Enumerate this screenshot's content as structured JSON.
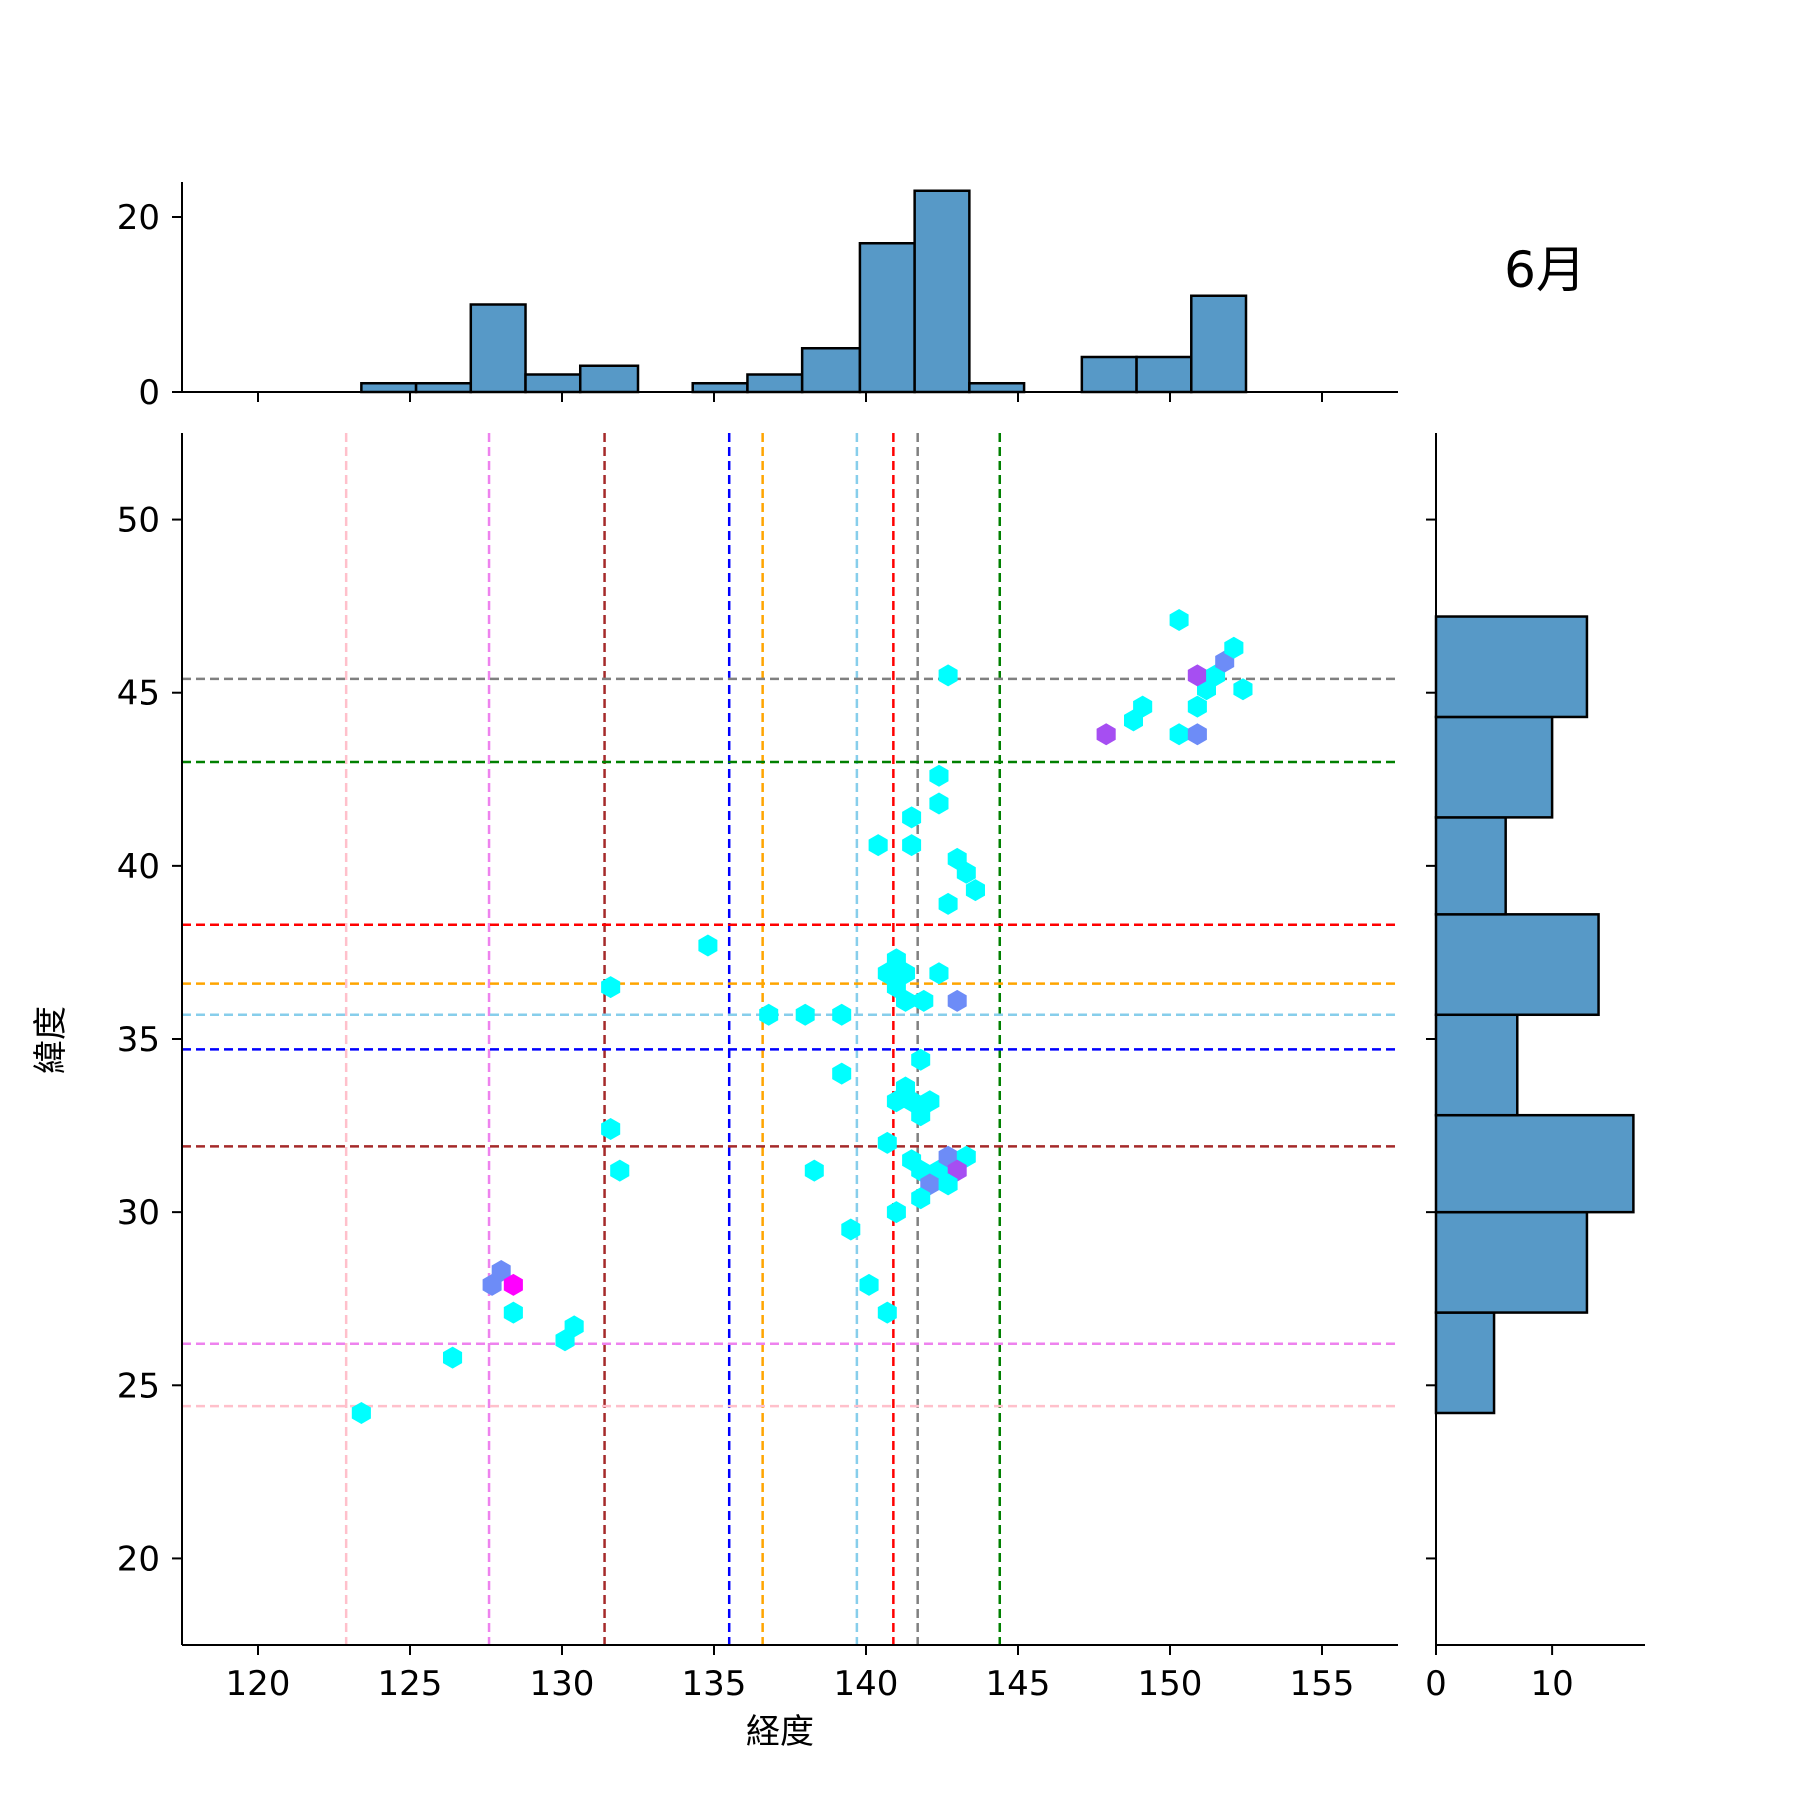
{
  "chart_data": {
    "type": "scatter",
    "title": "6月",
    "xlabel": "経度",
    "ylabel": "緯度",
    "xlim": [
      117.5,
      157.5
    ],
    "ylim": [
      17.5,
      52.5
    ],
    "xticks": [
      120,
      125,
      130,
      135,
      140,
      145,
      150,
      155
    ],
    "yticks": [
      20,
      25,
      30,
      35,
      40,
      45,
      50
    ],
    "hex_points": [
      {
        "x": 123.4,
        "y": 24.2,
        "color": "#00ffff"
      },
      {
        "x": 126.4,
        "y": 25.8,
        "color": "#00ffff"
      },
      {
        "x": 127.7,
        "y": 27.9,
        "color": "#6d8cf7"
      },
      {
        "x": 128.0,
        "y": 28.3,
        "color": "#6d8cf7"
      },
      {
        "x": 128.4,
        "y": 27.9,
        "color": "#ff00ff"
      },
      {
        "x": 128.4,
        "y": 27.1,
        "color": "#00ffff"
      },
      {
        "x": 130.1,
        "y": 26.3,
        "color": "#00ffff"
      },
      {
        "x": 130.4,
        "y": 26.7,
        "color": "#00ffff"
      },
      {
        "x": 131.6,
        "y": 32.4,
        "color": "#00ffff"
      },
      {
        "x": 131.9,
        "y": 31.2,
        "color": "#00ffff"
      },
      {
        "x": 131.6,
        "y": 36.5,
        "color": "#00ffff"
      },
      {
        "x": 134.8,
        "y": 37.7,
        "color": "#00ffff"
      },
      {
        "x": 136.8,
        "y": 35.7,
        "color": "#00ffff"
      },
      {
        "x": 138.0,
        "y": 35.7,
        "color": "#00ffff"
      },
      {
        "x": 139.2,
        "y": 35.7,
        "color": "#00ffff"
      },
      {
        "x": 139.2,
        "y": 34.0,
        "color": "#00ffff"
      },
      {
        "x": 138.3,
        "y": 31.2,
        "color": "#00ffff"
      },
      {
        "x": 139.5,
        "y": 29.5,
        "color": "#00ffff"
      },
      {
        "x": 140.1,
        "y": 27.9,
        "color": "#00ffff"
      },
      {
        "x": 140.7,
        "y": 27.1,
        "color": "#00ffff"
      },
      {
        "x": 140.4,
        "y": 40.6,
        "color": "#00ffff"
      },
      {
        "x": 141.5,
        "y": 40.6,
        "color": "#00ffff"
      },
      {
        "x": 141.5,
        "y": 41.4,
        "color": "#00ffff"
      },
      {
        "x": 142.4,
        "y": 41.8,
        "color": "#00ffff"
      },
      {
        "x": 142.4,
        "y": 42.6,
        "color": "#00ffff"
      },
      {
        "x": 143.0,
        "y": 40.2,
        "color": "#00ffff"
      },
      {
        "x": 143.3,
        "y": 39.8,
        "color": "#00ffff"
      },
      {
        "x": 143.6,
        "y": 39.3,
        "color": "#00ffff"
      },
      {
        "x": 142.7,
        "y": 38.9,
        "color": "#00ffff"
      },
      {
        "x": 142.7,
        "y": 45.5,
        "color": "#00ffff"
      },
      {
        "x": 140.7,
        "y": 36.9,
        "color": "#00ffff"
      },
      {
        "x": 141.0,
        "y": 37.3,
        "color": "#00ffff"
      },
      {
        "x": 141.3,
        "y": 36.9,
        "color": "#00ffff"
      },
      {
        "x": 141.0,
        "y": 36.5,
        "color": "#00ffff"
      },
      {
        "x": 141.3,
        "y": 36.1,
        "color": "#00ffff"
      },
      {
        "x": 141.9,
        "y": 36.1,
        "color": "#00ffff"
      },
      {
        "x": 142.4,
        "y": 36.9,
        "color": "#00ffff"
      },
      {
        "x": 143.0,
        "y": 36.1,
        "color": "#6d8cf7"
      },
      {
        "x": 141.8,
        "y": 34.4,
        "color": "#00ffff"
      },
      {
        "x": 141.3,
        "y": 33.6,
        "color": "#00ffff"
      },
      {
        "x": 141.0,
        "y": 33.2,
        "color": "#00ffff"
      },
      {
        "x": 141.5,
        "y": 33.2,
        "color": "#00ffff"
      },
      {
        "x": 142.1,
        "y": 33.2,
        "color": "#00ffff"
      },
      {
        "x": 141.8,
        "y": 32.8,
        "color": "#00ffff"
      },
      {
        "x": 140.7,
        "y": 32.0,
        "color": "#00ffff"
      },
      {
        "x": 141.5,
        "y": 31.5,
        "color": "#00ffff"
      },
      {
        "x": 141.8,
        "y": 31.2,
        "color": "#00ffff"
      },
      {
        "x": 142.4,
        "y": 31.2,
        "color": "#00ffff"
      },
      {
        "x": 142.7,
        "y": 31.6,
        "color": "#6d8cf7"
      },
      {
        "x": 143.3,
        "y": 31.6,
        "color": "#00ffff"
      },
      {
        "x": 143.0,
        "y": 31.2,
        "color": "#a64ef2"
      },
      {
        "x": 142.1,
        "y": 30.8,
        "color": "#6d8cf7"
      },
      {
        "x": 142.7,
        "y": 30.8,
        "color": "#00ffff"
      },
      {
        "x": 141.8,
        "y": 30.4,
        "color": "#00ffff"
      },
      {
        "x": 141.0,
        "y": 30.0,
        "color": "#00ffff"
      },
      {
        "x": 147.9,
        "y": 43.8,
        "color": "#a64ef2"
      },
      {
        "x": 148.8,
        "y": 44.2,
        "color": "#00ffff"
      },
      {
        "x": 149.1,
        "y": 44.6,
        "color": "#00ffff"
      },
      {
        "x": 150.3,
        "y": 43.8,
        "color": "#00ffff"
      },
      {
        "x": 150.9,
        "y": 43.8,
        "color": "#6d8cf7"
      },
      {
        "x": 150.3,
        "y": 47.1,
        "color": "#00ffff"
      },
      {
        "x": 150.9,
        "y": 44.6,
        "color": "#00ffff"
      },
      {
        "x": 151.2,
        "y": 45.1,
        "color": "#00ffff"
      },
      {
        "x": 150.9,
        "y": 45.5,
        "color": "#a64ef2"
      },
      {
        "x": 151.5,
        "y": 45.5,
        "color": "#00ffff"
      },
      {
        "x": 151.8,
        "y": 45.9,
        "color": "#6d8cf7"
      },
      {
        "x": 152.1,
        "y": 46.3,
        "color": "#00ffff"
      },
      {
        "x": 152.4,
        "y": 45.1,
        "color": "#00ffff"
      }
    ],
    "vlines": [
      {
        "x": 122.9,
        "color": "#ffc0cb"
      },
      {
        "x": 127.6,
        "color": "#ee82ee"
      },
      {
        "x": 131.4,
        "color": "#a52a2a"
      },
      {
        "x": 135.5,
        "color": "#0000ff"
      },
      {
        "x": 136.6,
        "color": "#ffa500"
      },
      {
        "x": 139.7,
        "color": "#87ceeb"
      },
      {
        "x": 140.9,
        "color": "#ff0000"
      },
      {
        "x": 141.7,
        "color": "#808080"
      },
      {
        "x": 144.4,
        "color": "#008000"
      }
    ],
    "hlines": [
      {
        "y": 45.4,
        "color": "#808080"
      },
      {
        "y": 43.0,
        "color": "#008000"
      },
      {
        "y": 38.3,
        "color": "#ff0000"
      },
      {
        "y": 36.6,
        "color": "#ffa500"
      },
      {
        "y": 35.7,
        "color": "#87ceeb"
      },
      {
        "y": 34.7,
        "color": "#0000ff"
      },
      {
        "y": 31.9,
        "color": "#a52a2a"
      },
      {
        "y": 26.2,
        "color": "#ee82ee"
      },
      {
        "y": 24.4,
        "color": "#ffc0cb"
      }
    ],
    "top_histogram": {
      "ylim": [
        0,
        24
      ],
      "yticks": [
        0,
        20
      ],
      "bins": [
        {
          "x0": 123.4,
          "x1": 125.2,
          "count": 1
        },
        {
          "x0": 125.2,
          "x1": 127.0,
          "count": 1
        },
        {
          "x0": 127.0,
          "x1": 128.8,
          "count": 10
        },
        {
          "x0": 128.8,
          "x1": 130.6,
          "count": 2
        },
        {
          "x0": 130.6,
          "x1": 132.5,
          "count": 3
        },
        {
          "x0": 134.3,
          "x1": 136.1,
          "count": 1
        },
        {
          "x0": 136.1,
          "x1": 137.9,
          "count": 2
        },
        {
          "x0": 137.9,
          "x1": 139.8,
          "count": 5
        },
        {
          "x0": 139.8,
          "x1": 141.6,
          "count": 17
        },
        {
          "x0": 141.6,
          "x1": 143.4,
          "count": 23
        },
        {
          "x0": 143.4,
          "x1": 145.2,
          "count": 1
        },
        {
          "x0": 147.1,
          "x1": 148.9,
          "count": 4
        },
        {
          "x0": 148.9,
          "x1": 150.7,
          "count": 4
        },
        {
          "x0": 150.7,
          "x1": 152.5,
          "count": 11
        }
      ]
    },
    "right_histogram": {
      "xlim": [
        0,
        18
      ],
      "xticks": [
        0,
        10
      ],
      "bins": [
        {
          "y0": 24.2,
          "y1": 27.1,
          "count": 5
        },
        {
          "y0": 27.1,
          "y1": 30.0,
          "count": 13
        },
        {
          "y0": 30.0,
          "y1": 32.8,
          "count": 17
        },
        {
          "y0": 32.8,
          "y1": 35.7,
          "count": 7
        },
        {
          "y0": 35.7,
          "y1": 38.6,
          "count": 14
        },
        {
          "y0": 38.6,
          "y1": 41.4,
          "count": 6
        },
        {
          "y0": 41.4,
          "y1": 44.3,
          "count": 10
        },
        {
          "y0": 44.3,
          "y1": 47.2,
          "count": 13
        }
      ]
    },
    "bar_color": "#5799c7",
    "grid": false
  }
}
